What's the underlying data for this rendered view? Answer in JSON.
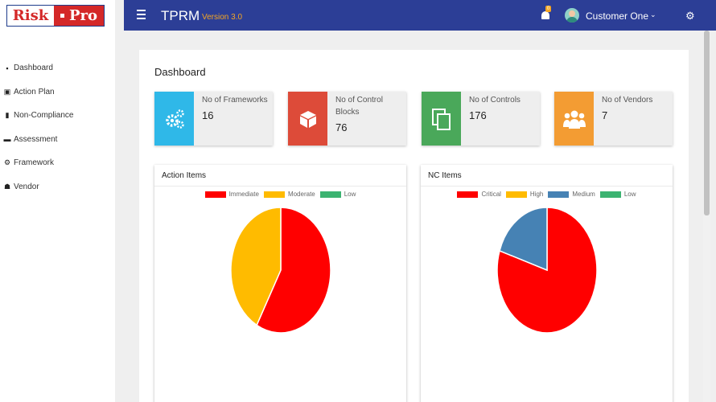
{
  "brand": {
    "logo_left": "Risk",
    "logo_right": "Pro"
  },
  "sidebar": {
    "items": [
      {
        "label": "Dashboard",
        "icon": "briefcase-icon",
        "glyph": "▪"
      },
      {
        "label": "Action Plan",
        "icon": "clipboard-icon",
        "glyph": "▣"
      },
      {
        "label": "Non-Compliance",
        "icon": "book-icon",
        "glyph": "▮"
      },
      {
        "label": "Assessment",
        "icon": "file-icon",
        "glyph": "▬"
      },
      {
        "label": "Framework",
        "icon": "cogs-icon",
        "glyph": "⚙"
      },
      {
        "label": "Vendor",
        "icon": "users-icon",
        "glyph": "☗"
      }
    ]
  },
  "header": {
    "title": "TPRM",
    "version": "Version 3.0",
    "notification_count": "0",
    "user_name": "Customer One",
    "colors": {
      "bar": "#2c3e96",
      "version": "#f5a623"
    }
  },
  "main": {
    "title": "Dashboard",
    "cards": [
      {
        "label": "No of Frameworks",
        "value": "16",
        "color": "#2fb8e8",
        "icon": "cogs-icon"
      },
      {
        "label": "No of Control Blocks",
        "value": "76",
        "color": "#dd4b39",
        "icon": "cube-icon"
      },
      {
        "label": "No of Controls",
        "value": "176",
        "color": "#4aa85a",
        "icon": "copy-icon"
      },
      {
        "label": "No of Vendors",
        "value": "7",
        "color": "#f39c33",
        "icon": "users-icon"
      }
    ]
  },
  "chart_data": [
    {
      "type": "pie",
      "title": "Action Items",
      "categories": [
        "Immediate",
        "Moderate",
        "Low"
      ],
      "values": [
        58,
        42,
        0
      ],
      "colors": [
        "#ff0000",
        "#ffbb00",
        "#3cb371"
      ],
      "legend": "top"
    },
    {
      "type": "pie",
      "title": "NC Items",
      "categories": [
        "Critical",
        "High",
        "Medium",
        "Low"
      ],
      "values": [
        80,
        0,
        20,
        0
      ],
      "colors": [
        "#ff0000",
        "#ffbb00",
        "#4682b4",
        "#3cb371"
      ],
      "legend": "top"
    }
  ]
}
